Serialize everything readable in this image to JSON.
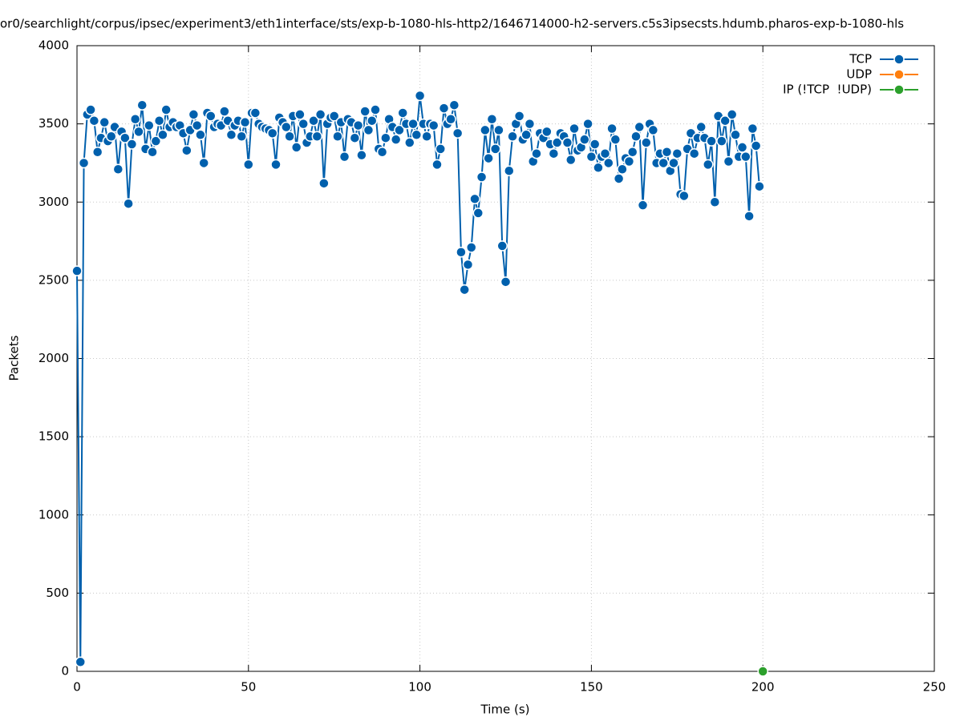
{
  "chart_data": {
    "type": "line",
    "title": "or0/searchlight/corpus/ipsec/experiment3/eth1interface/sts/exp-b-1080-hls-http2/1646714000-h2-servers.c5s3ipsecsts.hdumb.pharos-exp-b-1080-hls",
    "x_label": "Time (s)",
    "y_label": "Packets",
    "xlim": [
      0,
      250
    ],
    "xticks": [
      0,
      50,
      100,
      150,
      200,
      250
    ],
    "ylim": [
      0,
      4000
    ],
    "yticks": [
      0,
      500,
      1000,
      1500,
      2000,
      2500,
      3000,
      3500,
      4000
    ],
    "grid": true,
    "legend": "top-right",
    "series": [
      {
        "name": "TCP",
        "color": "#0060ad",
        "x": [
          0,
          1,
          2,
          3,
          4,
          5,
          6,
          7,
          8,
          9,
          10,
          11,
          12,
          13,
          14,
          15,
          16,
          17,
          18,
          19,
          20,
          21,
          22,
          23,
          24,
          25,
          26,
          27,
          28,
          29,
          30,
          31,
          32,
          33,
          34,
          35,
          36,
          37,
          38,
          39,
          40,
          41,
          42,
          43,
          44,
          45,
          46,
          47,
          48,
          49,
          50,
          51,
          52,
          53,
          54,
          55,
          56,
          57,
          58,
          59,
          60,
          61,
          62,
          63,
          64,
          65,
          66,
          67,
          68,
          69,
          70,
          71,
          72,
          73,
          74,
          75,
          76,
          77,
          78,
          79,
          80,
          81,
          82,
          83,
          84,
          85,
          86,
          87,
          88,
          89,
          90,
          91,
          92,
          93,
          94,
          95,
          96,
          97,
          98,
          99,
          100,
          101,
          102,
          103,
          104,
          105,
          106,
          107,
          108,
          109,
          110,
          111,
          112,
          113,
          114,
          115,
          116,
          117,
          118,
          119,
          120,
          121,
          122,
          123,
          124,
          125,
          126,
          127,
          128,
          129,
          130,
          131,
          132,
          133,
          134,
          135,
          136,
          137,
          138,
          139,
          140,
          141,
          142,
          143,
          144,
          145,
          146,
          147,
          148,
          149,
          150,
          151,
          152,
          153,
          154,
          155,
          156,
          157,
          158,
          159,
          160,
          161,
          162,
          163,
          164,
          165,
          166,
          167,
          168,
          169,
          170,
          171,
          172,
          173,
          174,
          175,
          176,
          177,
          178,
          179,
          180,
          181,
          182,
          183,
          184,
          185,
          186,
          187,
          188,
          189,
          190,
          191,
          192,
          193,
          194,
          195,
          196,
          197,
          198,
          199
        ],
        "values": [
          2560,
          60,
          3250,
          3560,
          3590,
          3520,
          3320,
          3410,
          3510,
          3390,
          3420,
          3480,
          3210,
          3450,
          3410,
          2990,
          3370,
          3530,
          3450,
          3620,
          3340,
          3490,
          3320,
          3390,
          3520,
          3430,
          3590,
          3480,
          3510,
          3480,
          3490,
          3440,
          3330,
          3460,
          3560,
          3490,
          3430,
          3250,
          3570,
          3550,
          3480,
          3500,
          3490,
          3580,
          3520,
          3430,
          3490,
          3520,
          3420,
          3510,
          3240,
          3570,
          3570,
          3500,
          3480,
          3470,
          3460,
          3440,
          3240,
          3540,
          3510,
          3480,
          3420,
          3550,
          3350,
          3560,
          3500,
          3380,
          3420,
          3520,
          3420,
          3560,
          3120,
          3500,
          3540,
          3550,
          3420,
          3510,
          3290,
          3530,
          3510,
          3410,
          3490,
          3300,
          3580,
          3460,
          3520,
          3590,
          3340,
          3320,
          3410,
          3530,
          3480,
          3400,
          3460,
          3570,
          3500,
          3380,
          3500,
          3430,
          3680,
          3500,
          3420,
          3500,
          3490,
          3240,
          3340,
          3600,
          3500,
          3530,
          3620,
          3440,
          2680,
          2440,
          2600,
          2710,
          3020,
          2930,
          3160,
          3460,
          3280,
          3530,
          3340,
          3460,
          2720,
          2490,
          3200,
          3420,
          3500,
          3550,
          3400,
          3430,
          3500,
          3260,
          3310,
          3440,
          3410,
          3450,
          3370,
          3310,
          3380,
          3440,
          3420,
          3380,
          3270,
          3470,
          3330,
          3350,
          3400,
          3500,
          3290,
          3370,
          3220,
          3290,
          3310,
          3250,
          3470,
          3400,
          3150,
          3210,
          3280,
          3260,
          3320,
          3420,
          3480,
          2980,
          3380,
          3500,
          3460,
          3250,
          3310,
          3250,
          3320,
          3200,
          3250,
          3310,
          3050,
          3040,
          3340,
          3440,
          3310,
          3410,
          3480,
          3410,
          3240,
          3390,
          3000,
          3550,
          3390,
          3520,
          3260,
          3560,
          3430,
          3290,
          3350,
          3290,
          2910,
          3470,
          3360,
          3100
        ]
      },
      {
        "name": "UDP",
        "color": "#ff7f0e",
        "x": [],
        "values": []
      },
      {
        "name": "IP (!TCP  !UDP)",
        "color": "#2ca02c",
        "x": [
          200
        ],
        "values": [
          0
        ]
      }
    ]
  }
}
